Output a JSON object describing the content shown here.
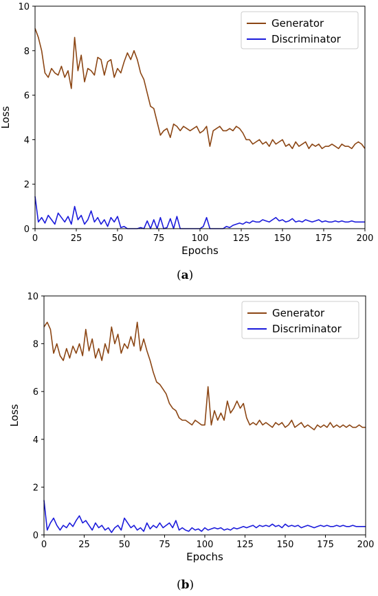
{
  "chart_data": [
    {
      "type": "line",
      "panel": "a",
      "caption_letter": "a",
      "xlabel": "Epochs",
      "ylabel": "Loss",
      "xlim": [
        0,
        200
      ],
      "ylim": [
        0,
        10
      ],
      "xticks": [
        0,
        25,
        50,
        75,
        100,
        125,
        150,
        175,
        200
      ],
      "yticks": [
        0,
        2,
        4,
        6,
        8,
        10
      ],
      "legend_position": "top-right",
      "series": [
        {
          "name": "Generator",
          "color": "#8B4513",
          "x": [
            0,
            2,
            4,
            6,
            8,
            10,
            12,
            14,
            16,
            18,
            20,
            22,
            24,
            26,
            28,
            30,
            32,
            34,
            36,
            38,
            40,
            42,
            44,
            46,
            48,
            50,
            52,
            54,
            56,
            58,
            60,
            62,
            64,
            66,
            68,
            70,
            72,
            74,
            76,
            78,
            80,
            82,
            84,
            86,
            88,
            90,
            92,
            94,
            96,
            98,
            100,
            102,
            104,
            106,
            108,
            110,
            112,
            114,
            116,
            118,
            120,
            122,
            124,
            126,
            128,
            130,
            132,
            134,
            136,
            138,
            140,
            142,
            144,
            146,
            148,
            150,
            152,
            154,
            156,
            158,
            160,
            162,
            164,
            166,
            168,
            170,
            172,
            174,
            176,
            178,
            180,
            182,
            184,
            186,
            188,
            190,
            192,
            194,
            196,
            198,
            200
          ],
          "values": [
            9.0,
            8.6,
            8.0,
            7.0,
            6.8,
            7.2,
            7.0,
            6.9,
            7.3,
            6.8,
            7.1,
            6.3,
            8.6,
            7.1,
            7.8,
            6.6,
            7.2,
            7.1,
            6.9,
            7.7,
            7.6,
            6.9,
            7.5,
            7.6,
            6.8,
            7.2,
            7.0,
            7.5,
            7.9,
            7.6,
            8.0,
            7.6,
            7.0,
            6.7,
            6.1,
            5.5,
            5.4,
            4.8,
            4.2,
            4.4,
            4.5,
            4.1,
            4.7,
            4.6,
            4.4,
            4.6,
            4.5,
            4.4,
            4.5,
            4.6,
            4.3,
            4.4,
            4.6,
            3.7,
            4.4,
            4.5,
            4.6,
            4.4,
            4.4,
            4.5,
            4.4,
            4.6,
            4.5,
            4.3,
            4.0,
            4.0,
            3.8,
            3.9,
            4.0,
            3.8,
            3.9,
            3.7,
            4.0,
            3.8,
            3.9,
            4.0,
            3.7,
            3.8,
            3.6,
            3.9,
            3.7,
            3.8,
            3.9,
            3.6,
            3.8,
            3.7,
            3.8,
            3.6,
            3.7,
            3.7,
            3.8,
            3.7,
            3.6,
            3.8,
            3.7,
            3.7,
            3.6,
            3.8,
            3.9,
            3.8,
            3.6
          ]
        },
        {
          "name": "Discriminator",
          "color": "#1a1adb",
          "x": [
            0,
            2,
            4,
            6,
            8,
            10,
            12,
            14,
            16,
            18,
            20,
            22,
            24,
            26,
            28,
            30,
            32,
            34,
            36,
            38,
            40,
            42,
            44,
            46,
            48,
            50,
            52,
            54,
            56,
            58,
            60,
            62,
            64,
            66,
            68,
            70,
            72,
            74,
            76,
            78,
            80,
            82,
            84,
            86,
            88,
            90,
            92,
            94,
            96,
            98,
            100,
            102,
            104,
            106,
            108,
            110,
            112,
            114,
            116,
            118,
            120,
            122,
            124,
            126,
            128,
            130,
            132,
            134,
            136,
            138,
            140,
            142,
            144,
            146,
            148,
            150,
            152,
            154,
            156,
            158,
            160,
            162,
            164,
            166,
            168,
            170,
            172,
            174,
            176,
            178,
            180,
            182,
            184,
            186,
            188,
            190,
            192,
            194,
            196,
            198,
            200
          ],
          "values": [
            1.45,
            0.3,
            0.5,
            0.25,
            0.6,
            0.4,
            0.2,
            0.7,
            0.5,
            0.3,
            0.55,
            0.2,
            1.0,
            0.4,
            0.6,
            0.2,
            0.4,
            0.8,
            0.3,
            0.5,
            0.2,
            0.4,
            0.1,
            0.5,
            0.3,
            0.55,
            0.05,
            0.1,
            0.0,
            0.0,
            0.0,
            0.0,
            0.05,
            0.0,
            0.35,
            0.0,
            0.4,
            0.0,
            0.5,
            0.0,
            0.05,
            0.45,
            0.0,
            0.55,
            0.0,
            0.0,
            0.0,
            0.0,
            0.0,
            0.0,
            0.0,
            0.1,
            0.5,
            0.0,
            0.0,
            0.0,
            0.0,
            0.0,
            0.1,
            0.05,
            0.15,
            0.2,
            0.25,
            0.2,
            0.3,
            0.25,
            0.35,
            0.3,
            0.3,
            0.4,
            0.35,
            0.3,
            0.4,
            0.5,
            0.35,
            0.4,
            0.3,
            0.35,
            0.45,
            0.3,
            0.35,
            0.3,
            0.4,
            0.35,
            0.3,
            0.35,
            0.4,
            0.3,
            0.35,
            0.3,
            0.3,
            0.35,
            0.3,
            0.35,
            0.3,
            0.3,
            0.35,
            0.3,
            0.3,
            0.3,
            0.3
          ]
        }
      ]
    },
    {
      "type": "line",
      "panel": "b",
      "caption_letter": "b",
      "xlabel": "Epochs",
      "ylabel": "Loss",
      "xlim": [
        0,
        200
      ],
      "ylim": [
        0,
        10
      ],
      "xticks": [
        0,
        25,
        50,
        75,
        100,
        125,
        150,
        175,
        200
      ],
      "yticks": [
        0,
        2,
        4,
        6,
        8,
        10
      ],
      "legend_position": "top-right",
      "series": [
        {
          "name": "Generator",
          "color": "#8B4513",
          "x": [
            0,
            2,
            4,
            6,
            8,
            10,
            12,
            14,
            16,
            18,
            20,
            22,
            24,
            26,
            28,
            30,
            32,
            34,
            36,
            38,
            40,
            42,
            44,
            46,
            48,
            50,
            52,
            54,
            56,
            58,
            60,
            62,
            64,
            66,
            68,
            70,
            72,
            74,
            76,
            78,
            80,
            82,
            84,
            86,
            88,
            90,
            92,
            94,
            96,
            98,
            100,
            102,
            104,
            106,
            108,
            110,
            112,
            114,
            116,
            118,
            120,
            122,
            124,
            126,
            128,
            130,
            132,
            134,
            136,
            138,
            140,
            142,
            144,
            146,
            148,
            150,
            152,
            154,
            156,
            158,
            160,
            162,
            164,
            166,
            168,
            170,
            172,
            174,
            176,
            178,
            180,
            182,
            184,
            186,
            188,
            190,
            192,
            194,
            196,
            198,
            200
          ],
          "values": [
            8.7,
            8.9,
            8.6,
            7.6,
            8.0,
            7.5,
            7.3,
            7.8,
            7.4,
            7.9,
            7.6,
            8.0,
            7.5,
            8.6,
            7.7,
            8.2,
            7.4,
            7.8,
            7.3,
            8.0,
            7.6,
            8.7,
            8.0,
            8.4,
            7.6,
            8.0,
            7.8,
            8.3,
            7.9,
            8.9,
            7.7,
            8.2,
            7.7,
            7.3,
            6.8,
            6.4,
            6.3,
            6.1,
            5.9,
            5.5,
            5.3,
            5.2,
            4.9,
            4.8,
            4.8,
            4.7,
            4.6,
            4.8,
            4.7,
            4.6,
            4.6,
            6.2,
            4.6,
            5.2,
            4.8,
            5.1,
            4.8,
            5.6,
            5.1,
            5.3,
            5.6,
            5.3,
            5.5,
            4.9,
            4.6,
            4.7,
            4.6,
            4.8,
            4.6,
            4.7,
            4.6,
            4.5,
            4.7,
            4.6,
            4.7,
            4.5,
            4.6,
            4.8,
            4.5,
            4.6,
            4.7,
            4.5,
            4.6,
            4.5,
            4.4,
            4.6,
            4.5,
            4.6,
            4.5,
            4.7,
            4.5,
            4.6,
            4.5,
            4.6,
            4.5,
            4.6,
            4.5,
            4.5,
            4.6,
            4.5,
            4.5
          ]
        },
        {
          "name": "Discriminator",
          "color": "#1a1adb",
          "x": [
            0,
            2,
            4,
            6,
            8,
            10,
            12,
            14,
            16,
            18,
            20,
            22,
            24,
            26,
            28,
            30,
            32,
            34,
            36,
            38,
            40,
            42,
            44,
            46,
            48,
            50,
            52,
            54,
            56,
            58,
            60,
            62,
            64,
            66,
            68,
            70,
            72,
            74,
            76,
            78,
            80,
            82,
            84,
            86,
            88,
            90,
            92,
            94,
            96,
            98,
            100,
            102,
            104,
            106,
            108,
            110,
            112,
            114,
            116,
            118,
            120,
            122,
            124,
            126,
            128,
            130,
            132,
            134,
            136,
            138,
            140,
            142,
            144,
            146,
            148,
            150,
            152,
            154,
            156,
            158,
            160,
            162,
            164,
            166,
            168,
            170,
            172,
            174,
            176,
            178,
            180,
            182,
            184,
            186,
            188,
            190,
            192,
            194,
            196,
            198,
            200
          ],
          "values": [
            1.45,
            0.2,
            0.5,
            0.7,
            0.4,
            0.2,
            0.4,
            0.3,
            0.5,
            0.35,
            0.6,
            0.8,
            0.5,
            0.6,
            0.4,
            0.2,
            0.5,
            0.3,
            0.4,
            0.2,
            0.3,
            0.1,
            0.3,
            0.4,
            0.2,
            0.7,
            0.5,
            0.3,
            0.4,
            0.2,
            0.3,
            0.15,
            0.5,
            0.25,
            0.4,
            0.3,
            0.5,
            0.3,
            0.4,
            0.5,
            0.3,
            0.6,
            0.2,
            0.3,
            0.2,
            0.15,
            0.3,
            0.2,
            0.25,
            0.15,
            0.3,
            0.2,
            0.25,
            0.3,
            0.25,
            0.3,
            0.2,
            0.25,
            0.2,
            0.3,
            0.25,
            0.3,
            0.35,
            0.3,
            0.35,
            0.4,
            0.3,
            0.4,
            0.35,
            0.4,
            0.35,
            0.45,
            0.35,
            0.4,
            0.3,
            0.45,
            0.35,
            0.4,
            0.35,
            0.4,
            0.3,
            0.35,
            0.4,
            0.35,
            0.3,
            0.35,
            0.4,
            0.35,
            0.4,
            0.35,
            0.35,
            0.4,
            0.35,
            0.4,
            0.35,
            0.35,
            0.4,
            0.35,
            0.35,
            0.35,
            0.35
          ]
        }
      ]
    }
  ]
}
